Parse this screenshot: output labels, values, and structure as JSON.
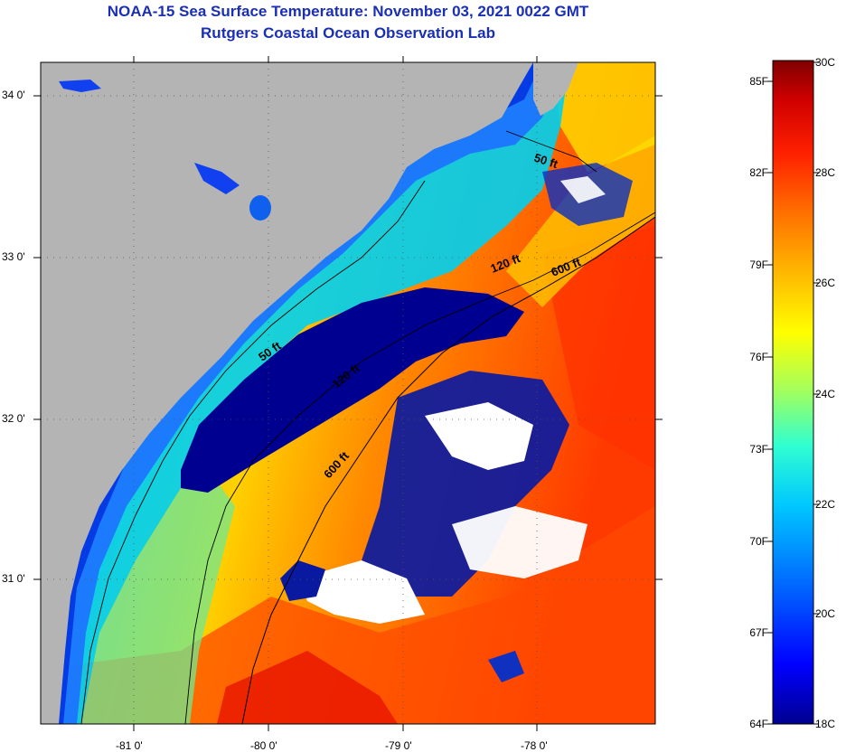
{
  "header": {
    "title": "NOAA-15 Sea Surface Temperature:  November 03, 2021 0022 GMT",
    "subtitle": "Rutgers Coastal Ocean Observation Lab"
  },
  "axes": {
    "latitude": [
      {
        "label": "34 0'",
        "value": 34.0
      },
      {
        "label": "33 0'",
        "value": 33.0
      },
      {
        "label": "32 0'",
        "value": 32.0
      },
      {
        "label": "31 0'",
        "value": 31.0
      }
    ],
    "longitude": [
      {
        "label": "-81 0'",
        "value": -81.0
      },
      {
        "label": "-80 0'",
        "value": -80.0
      },
      {
        "label": "-79 0'",
        "value": -79.0
      },
      {
        "label": "-78 0'",
        "value": -78.0
      }
    ],
    "lat_range": [
      30.15,
      34.2
    ],
    "lon_range": [
      -81.65,
      -77.1
    ]
  },
  "contours": {
    "labels": [
      "50 ft",
      "120 ft",
      "600 ft",
      "50 ft",
      "120 ft",
      "600 ft"
    ]
  },
  "colorbar": {
    "fahrenheit": [
      "85F",
      "82F",
      "79F",
      "76F",
      "73F",
      "70F",
      "67F",
      "64F"
    ],
    "celsius": [
      "30C",
      "28C",
      "26C",
      "24C",
      "22C",
      "20C",
      "18C"
    ],
    "range_c": [
      18,
      30
    ],
    "colors": [
      "#00008f",
      "#0000ff",
      "#0060ff",
      "#00c8ff",
      "#30ffd0",
      "#a0ff60",
      "#ffff00",
      "#ffc000",
      "#ff7000",
      "#ff2000",
      "#d00000",
      "#800000"
    ]
  },
  "colors": {
    "land": "#b4b4b4",
    "cloud": "#ffffff",
    "title": "#1a2fb5",
    "cold_pool": "#000090"
  }
}
